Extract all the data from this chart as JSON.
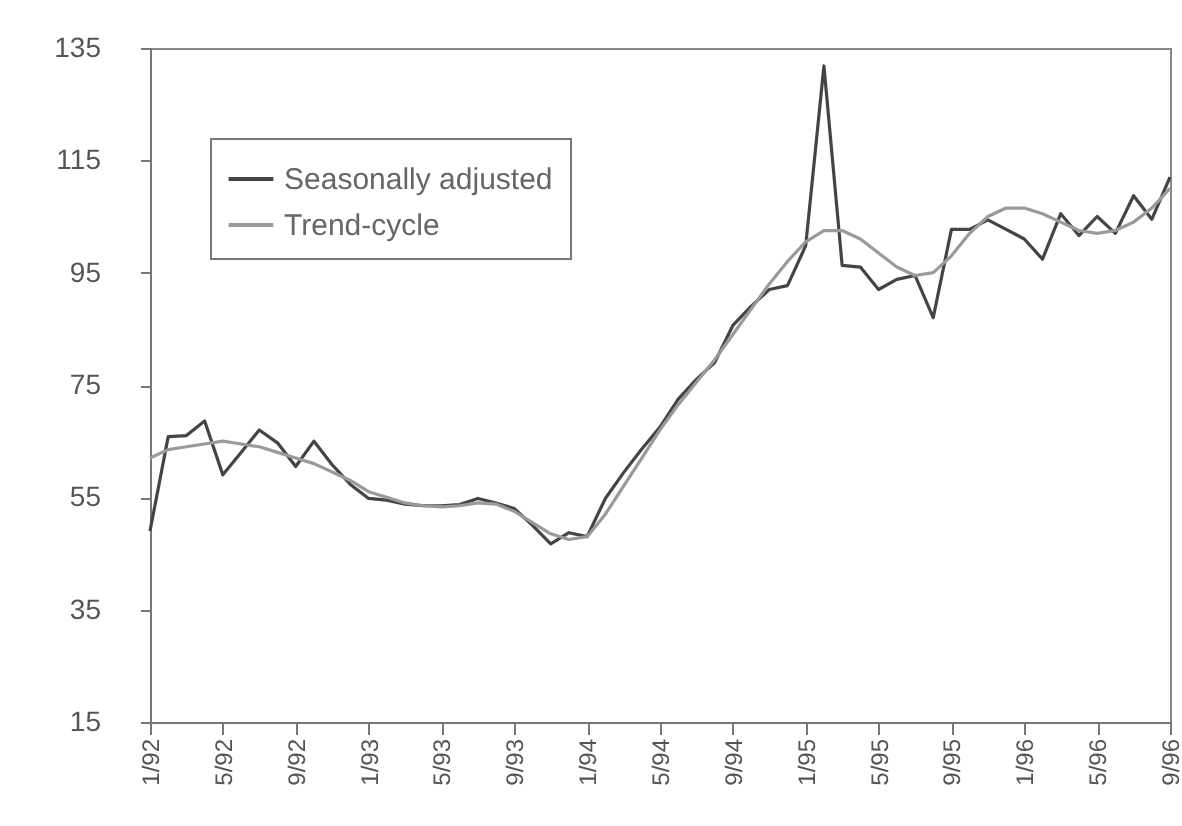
{
  "chart_data": {
    "type": "line",
    "categories": [
      "1/92",
      null,
      null,
      null,
      "5/92",
      null,
      null,
      null,
      "9/92",
      null,
      null,
      null,
      "1/93",
      null,
      null,
      null,
      "5/93",
      null,
      null,
      null,
      "9/93",
      null,
      null,
      null,
      "1/94",
      null,
      null,
      null,
      "5/94",
      null,
      null,
      null,
      "9/94",
      null,
      null,
      null,
      "1/95",
      null,
      null,
      null,
      "5/95",
      null,
      null,
      null,
      "9/95",
      null,
      null,
      null,
      "1/96",
      null,
      null,
      null,
      "5/96",
      null,
      null,
      null,
      "9/96"
    ],
    "series": [
      {
        "name": "Seasonally adjusted",
        "color": "#444444",
        "values": [
          49,
          65.8,
          66,
          68.6,
          59,
          63,
          67,
          64.7,
          60.5,
          65,
          60.8,
          57.3,
          54.8,
          54.5,
          53.8,
          53.5,
          53.5,
          53.7,
          54.8,
          54,
          53,
          50,
          46.7,
          48.7,
          48,
          54.8,
          59.4,
          63.6,
          67.5,
          72.5,
          76,
          79,
          85.6,
          89,
          92,
          92.7,
          99.8,
          131.8,
          96.3,
          96,
          92,
          93.8,
          94.5,
          87,
          102.7,
          102.7,
          104.4,
          102.7,
          101,
          97.4,
          105.5,
          101.6,
          105,
          102,
          108.7,
          104.5,
          112
        ]
      },
      {
        "name": "Trend-cycle",
        "color": "#9a9a9a",
        "values": [
          62,
          63.5,
          64,
          64.5,
          65,
          64.5,
          64,
          63,
          62,
          61,
          59.5,
          58,
          56,
          55,
          54,
          53.5,
          53.3,
          53.5,
          54,
          53.8,
          52.5,
          50.5,
          48.5,
          47.5,
          48,
          52,
          57,
          62,
          67,
          71.5,
          75.5,
          79.5,
          84,
          88.5,
          93,
          97,
          100.5,
          102.5,
          102.5,
          101,
          98.5,
          96,
          94.5,
          95,
          98,
          102,
          105,
          106.5,
          106.5,
          105.5,
          104,
          102.5,
          102,
          102.5,
          104,
          106.5,
          110
        ]
      }
    ],
    "ylim": [
      15,
      135
    ],
    "yticks": [
      15,
      35,
      55,
      75,
      95,
      115,
      135
    ],
    "legend": "top left"
  }
}
